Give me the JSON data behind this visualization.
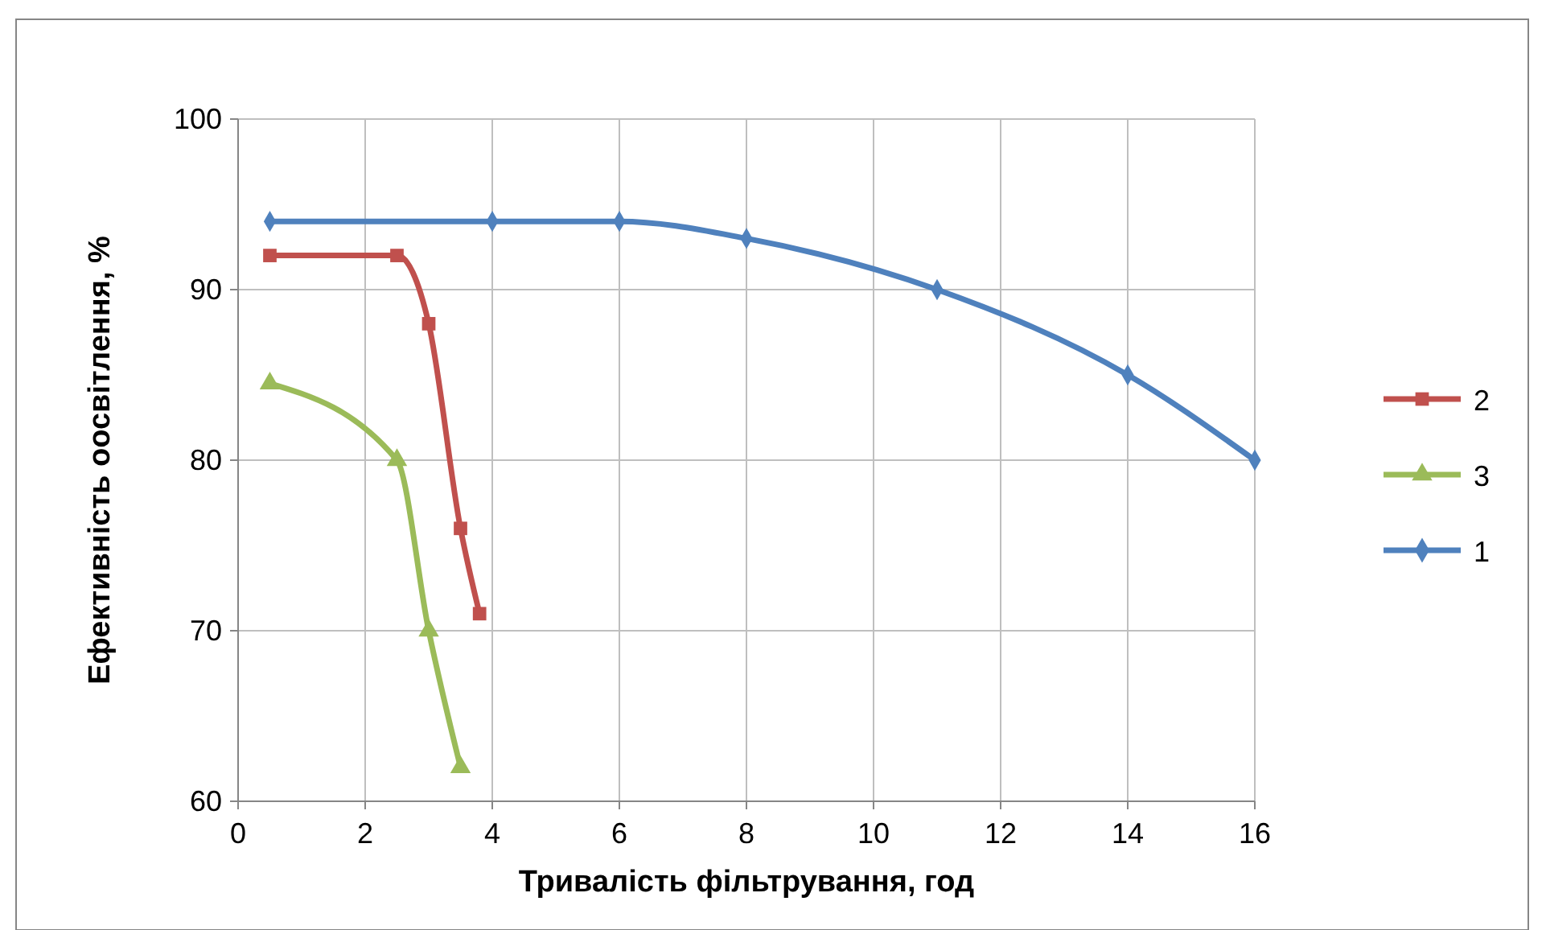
{
  "chart_data": {
    "type": "line",
    "xlabel": "Тривалість  фільтрування,  год",
    "ylabel": "Ефективність оосвітлення, %",
    "xlim": [
      0,
      16
    ],
    "xticks": [
      0,
      2,
      4,
      6,
      8,
      10,
      12,
      14,
      16
    ],
    "ylim": [
      60,
      100
    ],
    "yticks": [
      60,
      70,
      80,
      90,
      100
    ],
    "grid": true,
    "legend": "right",
    "line_style": "solid",
    "series": [
      {
        "name": "2",
        "color": "#c0504d",
        "marker": "square",
        "x": [
          0.5,
          2.5,
          3,
          3.5,
          3.8
        ],
        "values": [
          92,
          92,
          88,
          76,
          71
        ]
      },
      {
        "name": "3",
        "color": "#9bbb59",
        "marker": "triangle",
        "x": [
          0.5,
          2.5,
          3,
          3.5
        ],
        "values": [
          84.5,
          80,
          70,
          62
        ]
      },
      {
        "name": "1",
        "color": "#4f81bd",
        "marker": "diamond",
        "x": [
          0.5,
          4,
          6,
          8,
          11,
          14,
          16
        ],
        "values": [
          94,
          94,
          94,
          93,
          90,
          85,
          80
        ]
      }
    ]
  }
}
